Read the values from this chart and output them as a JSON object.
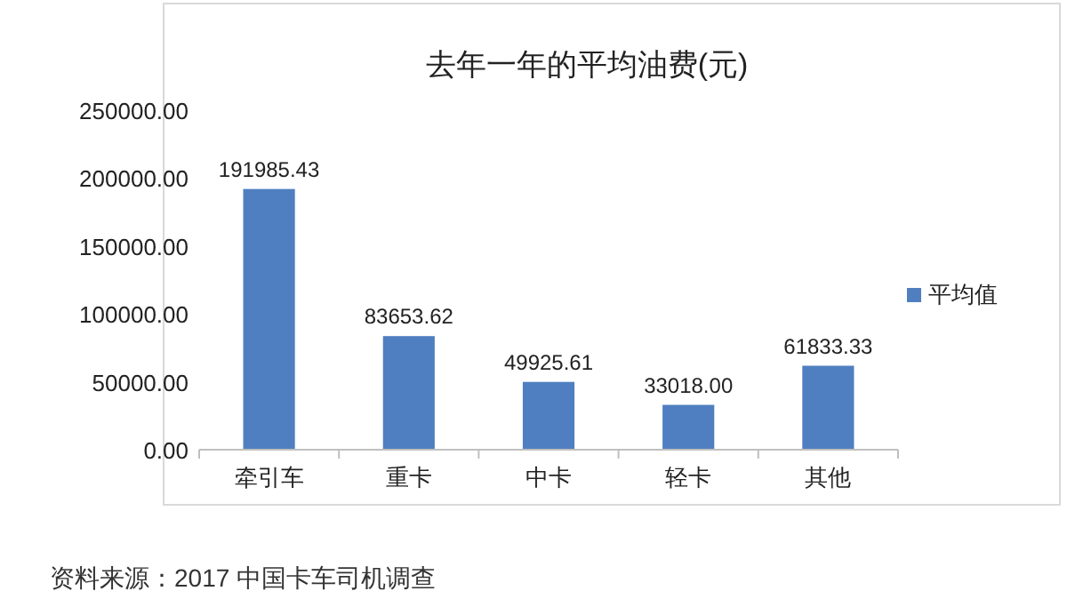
{
  "chart_data": {
    "type": "bar",
    "title": "去年一年的平均油费(元)",
    "categories": [
      "牵引车",
      "重卡",
      "中卡",
      "轻卡",
      "其他"
    ],
    "series": [
      {
        "name": "平均值",
        "color": "#4f7fc0",
        "values": [
          191985.43,
          83653.62,
          49925.61,
          33018.0,
          61833.33
        ],
        "value_labels": [
          "191985.43",
          "83653.62",
          "49925.61",
          "33018.00",
          "61833.33"
        ]
      }
    ],
    "ylim": [
      0,
      250000
    ],
    "yticks": [
      {
        "value": 0,
        "label": "0.00"
      },
      {
        "value": 50000,
        "label": "50000.00"
      },
      {
        "value": 100000,
        "label": "100000.00"
      },
      {
        "value": 150000,
        "label": "150000.00"
      },
      {
        "value": 200000,
        "label": "200000.00"
      },
      {
        "value": 250000,
        "label": "250000.00"
      }
    ],
    "grid": false,
    "legend": "right",
    "annotations": [
      "资料来源：2017  中国卡车司机调查"
    ]
  }
}
